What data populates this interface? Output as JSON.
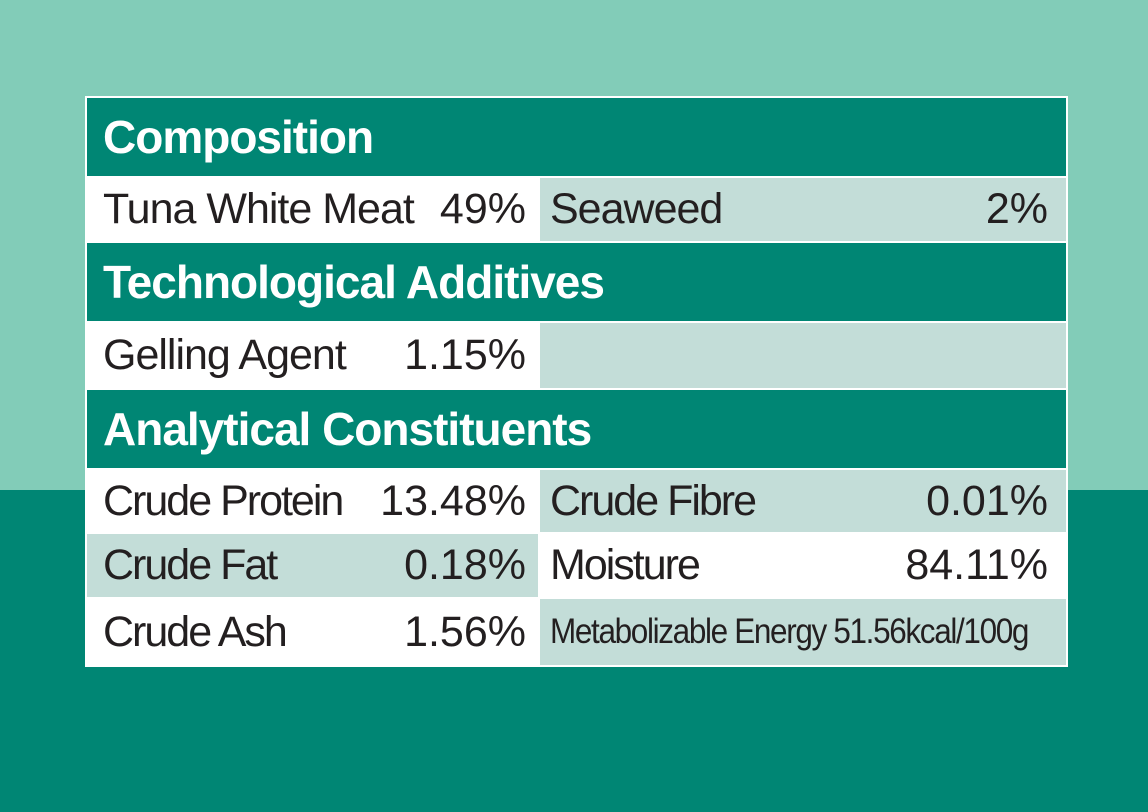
{
  "sections": {
    "composition": {
      "title": "Composition",
      "rows": [
        {
          "left": {
            "label": "Tuna White Meat",
            "value": "49%"
          },
          "right": {
            "label": "Seaweed",
            "value": "2%"
          }
        }
      ]
    },
    "technological_additives": {
      "title": "Technological Additives",
      "rows": [
        {
          "left": {
            "label": "Gelling Agent",
            "value": "1.15%"
          },
          "right": {
            "label": "",
            "value": ""
          }
        }
      ]
    },
    "analytical_constituents": {
      "title": "Analytical Constituents",
      "rows": [
        {
          "left": {
            "label": "Crude Protein",
            "value": "13.48%"
          },
          "right": {
            "label": "Crude Fibre",
            "value": "0.01%"
          }
        },
        {
          "left": {
            "label": "Crude Fat",
            "value": "0.18%"
          },
          "right": {
            "label": "Moisture",
            "value": "84.11%"
          }
        },
        {
          "left": {
            "label": "Crude Ash",
            "value": "1.56%"
          },
          "right": {
            "label": "Metabolizable Energy 51.56kcal/100g",
            "value": ""
          }
        }
      ]
    }
  },
  "colors": {
    "header_bg": "#008674",
    "light_bg": "#82ccb8",
    "tint_cell": "#c3ddd8",
    "text": "#231f20"
  }
}
